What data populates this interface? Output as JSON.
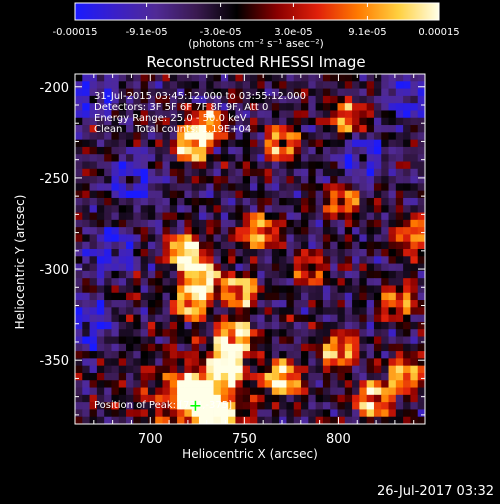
{
  "chart_data": {
    "type": "heatmap",
    "title": "Reconstructed RHESSI Image",
    "xlabel": "Heliocentric X (arcsec)",
    "ylabel": "Heliocentric Y (arcsec)",
    "xlim": [
      660,
      846
    ],
    "ylim": [
      -385,
      -193
    ],
    "x_ticks": [
      "700",
      "750",
      "800"
    ],
    "x_tick_values": [
      700,
      750,
      800
    ],
    "y_ticks": [
      "-200",
      "-250",
      "-300",
      "-350"
    ],
    "y_tick_values": [
      -200,
      -250,
      -300,
      -350
    ],
    "colorbar": {
      "ticks": [
        "-0.00015",
        "-9.1e-05",
        "-3.0e-05",
        "3.0e-05",
        "9.1e-05",
        "0.00015"
      ],
      "tick_values": [
        -0.00015,
        -9.1e-05,
        -3e-05,
        3e-05,
        9.1e-05,
        0.00015
      ],
      "range": [
        -0.00015,
        0.00015
      ],
      "unit_label": "(photons cm⁻² s⁻¹ asec⁻²)",
      "stops": [
        "#1a1aff",
        "#3a20c8",
        "#502a96",
        "#3a1a50",
        "#000000",
        "#8a0000",
        "#e0200a",
        "#ff7a00",
        "#ffd040",
        "#ffffe8"
      ]
    },
    "annotations": [
      "31-Jul-2015 03:45:12.000 to 03:55:12.000",
      "Detectors: 3F 5F 6F 7F 8F 9F, Att 0",
      "Energy Range: 25.0 - 50.0 keV",
      "Clean    Total counts: 1.19E+04"
    ],
    "peak_label": "Position of Peak: [724,-375]",
    "peak": [
      724,
      -375
    ],
    "bright_sources": [
      {
        "x": 730,
        "y": -222,
        "strength": 0.75
      },
      {
        "x": 722,
        "y": -232,
        "strength": 0.85
      },
      {
        "x": 770,
        "y": -230,
        "strength": 0.65
      },
      {
        "x": 805,
        "y": -217,
        "strength": 0.55
      },
      {
        "x": 802,
        "y": -262,
        "strength": 0.55
      },
      {
        "x": 718,
        "y": -290,
        "strength": 0.95
      },
      {
        "x": 728,
        "y": -304,
        "strength": 0.9
      },
      {
        "x": 722,
        "y": -318,
        "strength": 0.8
      },
      {
        "x": 748,
        "y": -312,
        "strength": 0.75
      },
      {
        "x": 758,
        "y": -280,
        "strength": 0.7
      },
      {
        "x": 745,
        "y": -338,
        "strength": 0.95
      },
      {
        "x": 740,
        "y": -355,
        "strength": 1.0
      },
      {
        "x": 722,
        "y": -368,
        "strength": 1.0
      },
      {
        "x": 733,
        "y": -378,
        "strength": 1.0
      },
      {
        "x": 770,
        "y": -360,
        "strength": 0.9
      },
      {
        "x": 800,
        "y": -345,
        "strength": 0.7
      },
      {
        "x": 818,
        "y": -372,
        "strength": 0.8
      },
      {
        "x": 835,
        "y": -358,
        "strength": 0.75
      },
      {
        "x": 840,
        "y": -282,
        "strength": 0.7
      },
      {
        "x": 832,
        "y": -318,
        "strength": 0.6
      },
      {
        "x": 785,
        "y": -300,
        "strength": 0.45
      }
    ],
    "dim_sources": [
      {
        "x": 670,
        "y": -205
      },
      {
        "x": 690,
        "y": -250
      },
      {
        "x": 668,
        "y": -330
      },
      {
        "x": 812,
        "y": -240
      },
      {
        "x": 680,
        "y": -290
      },
      {
        "x": 838,
        "y": -205
      }
    ],
    "grid": false
  },
  "footer": {
    "timestamp": "26-Jul-2017 03:32"
  }
}
